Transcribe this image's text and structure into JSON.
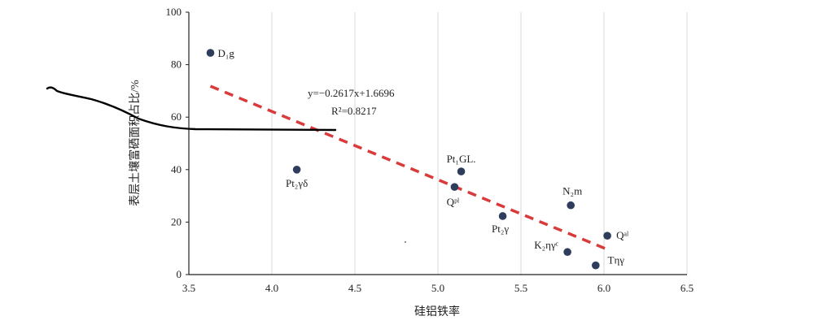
{
  "chart_data": {
    "type": "scatter",
    "title": "",
    "xlabel": "硅铝铁率",
    "ylabel": "表层土壤富硒面积占比/%",
    "xlim": [
      3.5,
      6.5
    ],
    "ylim": [
      0,
      100
    ],
    "xticks": [
      "3.5",
      "4.0",
      "4.5",
      "5.0",
      "5.5",
      "6.0",
      "6.5"
    ],
    "yticks": [
      "0",
      "20",
      "40",
      "60",
      "80",
      "100"
    ],
    "grid": "vertical",
    "points": [
      {
        "label": "D₁g",
        "x": 3.63,
        "y": 84.5
      },
      {
        "label": "Pt₂γδ",
        "x": 4.15,
        "y": 40.0
      },
      {
        "label": "Pt₁GL.",
        "x": 5.14,
        "y": 39.3
      },
      {
        "label": "Qᵖˡ",
        "x": 5.1,
        "y": 33.4
      },
      {
        "label": "Pt₂γ",
        "x": 5.39,
        "y": 22.3
      },
      {
        "label": "N₂m",
        "x": 5.8,
        "y": 26.4
      },
      {
        "label": "Qᵃˡ",
        "x": 6.02,
        "y": 14.8
      },
      {
        "label": "K₂ηγᶜ",
        "x": 5.78,
        "y": 8.6
      },
      {
        "label": "Tηγ",
        "x": 5.95,
        "y": 3.5
      }
    ],
    "trendline": {
      "x_start": 3.63,
      "x_end": 6.02,
      "y_start": 71.8,
      "y_end": 9.6,
      "color": "#d93a3a",
      "style": "dashed"
    },
    "equation": "y=−0.2617x+1.6696",
    "r2": "R²=0.8217",
    "colors": {
      "marker": "#2e3d5c",
      "axis": "#222222",
      "grid": "#d9d9d9",
      "annotation_stroke": "#000000"
    }
  }
}
